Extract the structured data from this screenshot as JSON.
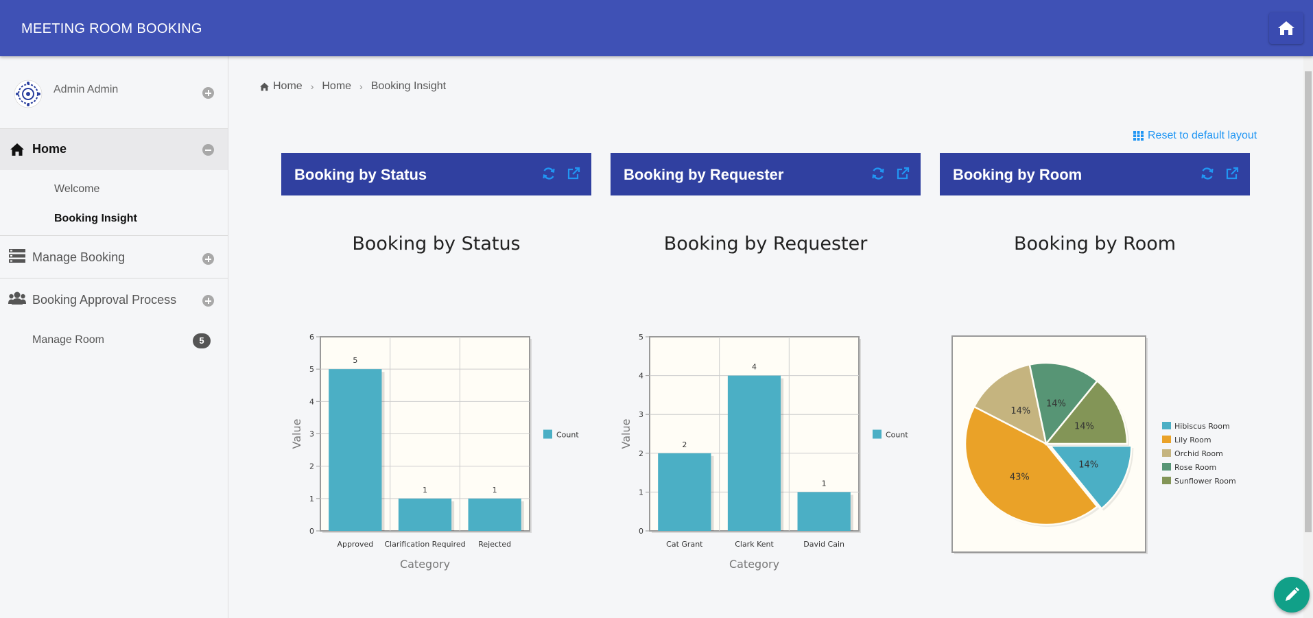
{
  "header": {
    "title": "MEETING ROOM BOOKING",
    "home_icon": "home-icon"
  },
  "sidebar": {
    "user_name": "Admin Admin",
    "home_label": "Home",
    "sub_items": [
      "Welcome",
      "Booking Insight"
    ],
    "manage_booking": "Manage Booking",
    "approval": "Booking Approval Process",
    "manage_room": "Manage Room",
    "manage_room_count": "5"
  },
  "breadcrumb": [
    "Home",
    "Home",
    "Booking Insight"
  ],
  "reset_label": "Reset to default layout",
  "panels": [
    "Booking by Status",
    "Booking by Requester",
    "Booking by Room"
  ],
  "colors": {
    "header": "#3f51b5",
    "panel": "#3040a0",
    "bar": "#4bafc5",
    "link": "#2196f3",
    "fab": "#11a088"
  },
  "chart_data": [
    {
      "type": "bar",
      "title": "Booking by Status",
      "categories": [
        "Approved",
        "Clarification Required",
        "Rejected"
      ],
      "series": [
        {
          "name": "Count",
          "values": [
            5,
            1,
            1
          ]
        }
      ],
      "xlabel": "Category",
      "ylabel": "Value",
      "ylim": [
        0,
        6
      ],
      "yticks": [
        0,
        1,
        2,
        3,
        4,
        5,
        6
      ],
      "grid": true,
      "legend": "right"
    },
    {
      "type": "bar",
      "title": "Booking by Requester",
      "categories": [
        "Cat Grant",
        "Clark Kent",
        "David Cain"
      ],
      "series": [
        {
          "name": "Count",
          "values": [
            2,
            4,
            1
          ]
        }
      ],
      "xlabel": "Category",
      "ylabel": "Value",
      "ylim": [
        0,
        5
      ],
      "yticks": [
        0,
        1,
        2,
        3,
        4,
        5
      ],
      "grid": true,
      "legend": "right"
    },
    {
      "type": "pie",
      "title": "Booking by Room",
      "labels": [
        "Hibiscus Room",
        "Lily Room",
        "Orchid Room",
        "Rose Room",
        "Sunflower Room"
      ],
      "values": [
        14,
        43,
        14,
        14,
        14
      ],
      "value_labels": [
        "14%",
        "43%",
        "14%",
        "14%",
        "14%"
      ],
      "colors": [
        "#4bafc5",
        "#eaa228",
        "#c5b47f",
        "#579575",
        "#839557"
      ],
      "legend": "right"
    }
  ]
}
